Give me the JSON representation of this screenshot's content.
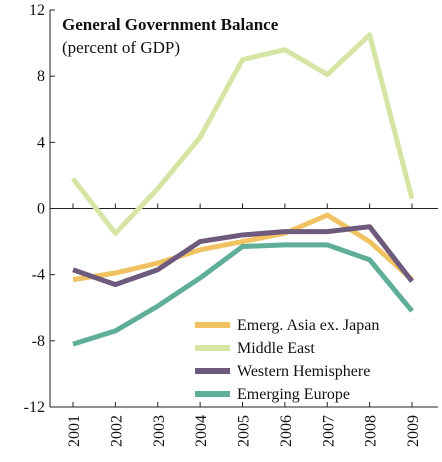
{
  "chart_data": {
    "type": "line",
    "title": "General Government Balance",
    "subtitle": "(percent of GDP)",
    "categories": [
      "2001",
      "2002",
      "2003",
      "2004",
      "2005",
      "2006",
      "2007",
      "2008",
      "2009"
    ],
    "series": [
      {
        "name": "Emerg. Asia ex. Japan",
        "color": "#f0c262",
        "values": [
          -4.3,
          -3.9,
          -3.3,
          -2.5,
          -2.0,
          -1.5,
          -0.4,
          -2.0,
          -4.3
        ]
      },
      {
        "name": "Middle East",
        "color": "#d5e5a3",
        "values": [
          1.8,
          -1.5,
          1.2,
          4.3,
          9.0,
          9.6,
          8.1,
          10.5,
          0.6
        ]
      },
      {
        "name": "Western Hemisphere",
        "color": "#6e5a7c",
        "values": [
          -3.7,
          -4.6,
          -3.7,
          -2.0,
          -1.6,
          -1.4,
          -1.4,
          -1.1,
          -4.4
        ]
      },
      {
        "name": "Emerging Europe",
        "color": "#5fae98",
        "values": [
          -8.2,
          -7.4,
          -5.9,
          -4.2,
          -2.3,
          -2.2,
          -2.2,
          -3.1,
          -6.2
        ]
      }
    ],
    "ylim": [
      -12,
      12
    ],
    "yticks": [
      -12,
      -8,
      -4,
      0,
      4,
      8,
      12
    ],
    "legend": "lower right"
  }
}
